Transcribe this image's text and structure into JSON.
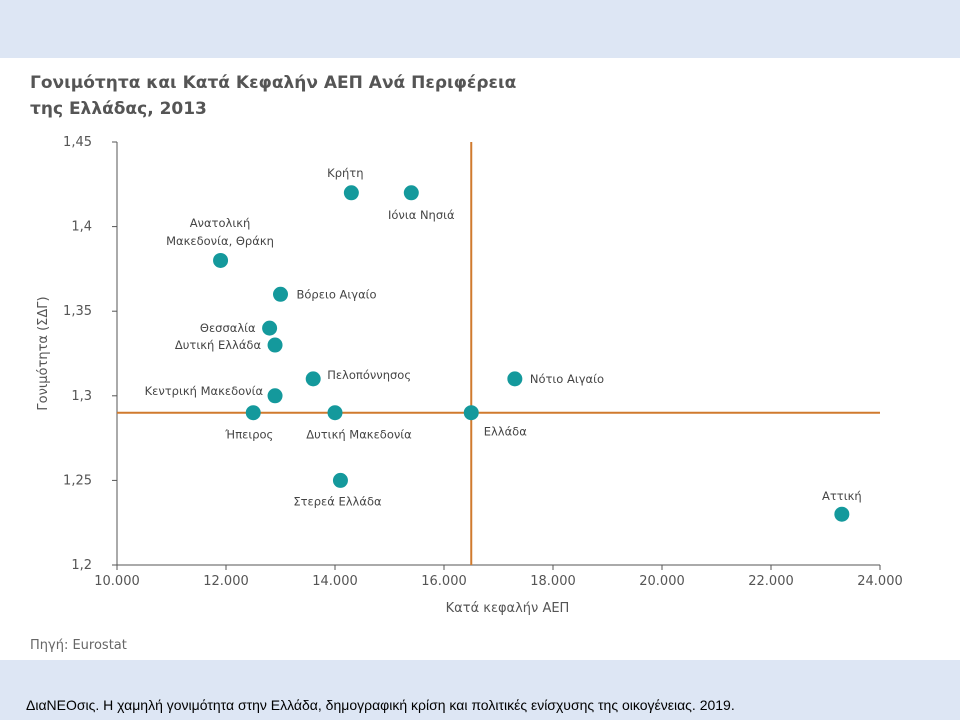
{
  "chart_data": {
    "type": "scatter",
    "title": "Γονιμότητα και Κατά Κεφαλήν ΑΕΠ Ανά Περιφέρεια της Ελλάδας, 2013",
    "xlabel": "Κατά κεφαλήν ΑΕΠ",
    "ylabel": "Γονιμότητα (ΣΔΓ)",
    "xlim": [
      10000,
      24000
    ],
    "ylim": [
      1.2,
      1.45
    ],
    "x_ticks": [
      "10.000",
      "12.000",
      "14.000",
      "16.000",
      "18.000",
      "20.000",
      "22.000",
      "24.000"
    ],
    "y_ticks": [
      "1,45",
      "1,4",
      "1,35",
      "1,3",
      "1,25",
      "1,2"
    ],
    "reference_lines": {
      "x": 16500,
      "y": 1.29
    },
    "points": [
      {
        "label": "Κρήτη",
        "x": 14300,
        "y": 1.42
      },
      {
        "label": "Ιόνια Νησιά",
        "x": 15400,
        "y": 1.42
      },
      {
        "label": "Ανατολική Μακεδονία, Θράκη",
        "x": 11900,
        "y": 1.38
      },
      {
        "label": "Βόρειο Αιγαίο",
        "x": 13000,
        "y": 1.36
      },
      {
        "label": "Θεσσαλία",
        "x": 12800,
        "y": 1.34
      },
      {
        "label": "Δυτική Ελλάδα",
        "x": 12900,
        "y": 1.33
      },
      {
        "label": "Πελοπόννησος",
        "x": 13600,
        "y": 1.31
      },
      {
        "label": "Νότιο Αιγαίο",
        "x": 17300,
        "y": 1.31
      },
      {
        "label": "Κεντρική Μακεδονία",
        "x": 12900,
        "y": 1.3
      },
      {
        "label": "Ήπειρος",
        "x": 12500,
        "y": 1.29
      },
      {
        "label": "Δυτική Μακεδονία",
        "x": 14000,
        "y": 1.29
      },
      {
        "label": "Ελλάδα",
        "x": 16500,
        "y": 1.29
      },
      {
        "label": "Στερεά Ελλάδα",
        "x": 14100,
        "y": 1.25
      },
      {
        "label": "Αττική",
        "x": 23300,
        "y": 1.23
      }
    ],
    "grid": false,
    "colors": {
      "points": "#14999c",
      "reference": "#d07a2e",
      "axis": "#555555"
    }
  },
  "source": "Πηγή: Eurostat",
  "citation": "ΔιαΝΕΟσις. Η χαμηλή γονιμότητα στην Ελλάδα, δημογραφική κρίση και πολιτικές ενίσχυσης της οικογένειας. 2019."
}
